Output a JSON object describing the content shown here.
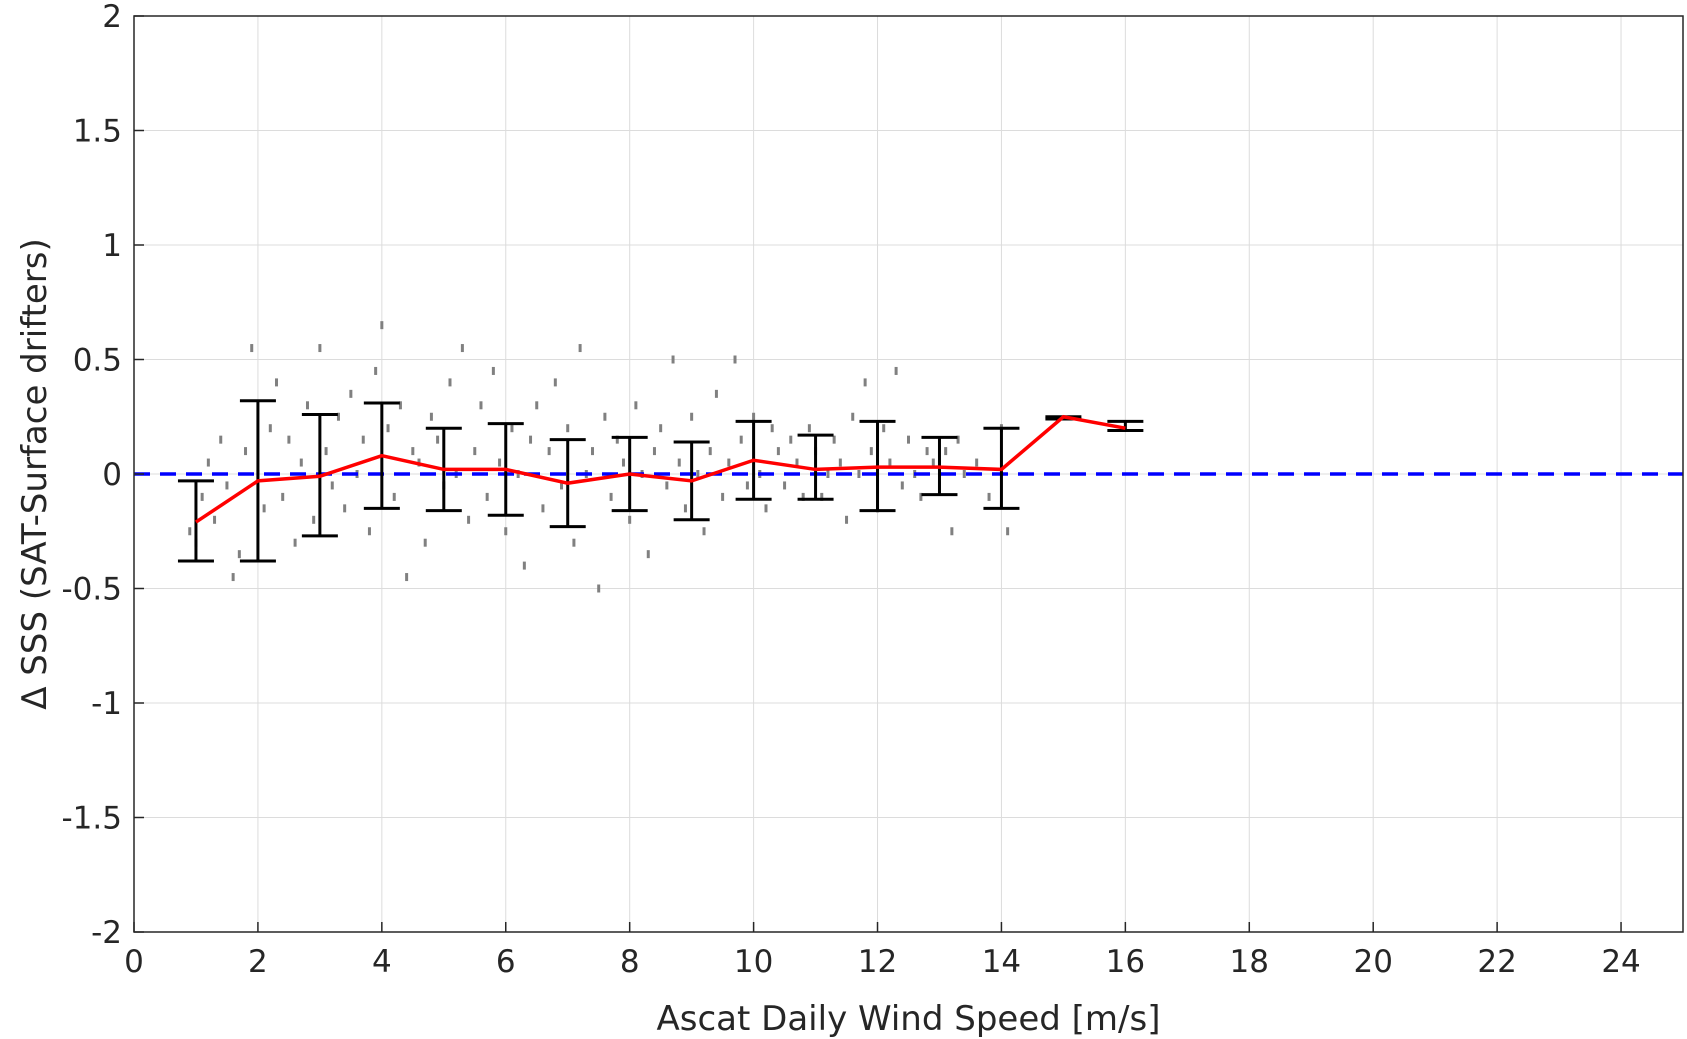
{
  "chart_data": {
    "type": "scatter",
    "xlabel": "Ascat Daily Wind Speed [m/s]",
    "ylabel": "Δ SSS (SAT-Surface drifters)",
    "xlim": [
      0,
      25
    ],
    "ylim": [
      -2,
      2
    ],
    "xticks": [
      0,
      2,
      4,
      6,
      8,
      10,
      12,
      14,
      16,
      18,
      20,
      22,
      24
    ],
    "yticks": [
      -2,
      -1.5,
      -1,
      -0.5,
      0,
      0.5,
      1,
      1.5,
      2
    ],
    "ytick_labels": [
      "-2",
      "-1.5",
      "-1",
      "-0.5",
      "0",
      "0.5",
      "1",
      "1.5",
      "2"
    ],
    "grid": true,
    "zero_line": {
      "y": 0,
      "style": "dashed",
      "color": "#0000ff"
    },
    "mean_line": {
      "color": "#ff0000",
      "x": [
        1,
        2,
        3,
        4,
        5,
        6,
        7,
        8,
        9,
        10,
        11,
        12,
        13,
        14,
        15,
        16
      ],
      "y": [
        -0.21,
        -0.03,
        -0.01,
        0.08,
        0.02,
        0.02,
        -0.04,
        0.0,
        -0.03,
        0.06,
        0.02,
        0.03,
        0.03,
        0.02,
        0.25,
        0.2
      ]
    },
    "error_bars": {
      "color": "#000000",
      "x": [
        1,
        2,
        3,
        4,
        5,
        6,
        7,
        8,
        9,
        10,
        11,
        12,
        13,
        14,
        15,
        16
      ],
      "low": [
        -0.38,
        -0.38,
        -0.27,
        -0.15,
        -0.16,
        -0.18,
        -0.23,
        -0.16,
        -0.2,
        -0.11,
        -0.11,
        -0.16,
        -0.09,
        -0.15,
        0.24,
        0.19
      ],
      "high": [
        -0.03,
        0.32,
        0.26,
        0.31,
        0.2,
        0.22,
        0.15,
        0.16,
        0.14,
        0.23,
        0.17,
        0.23,
        0.16,
        0.2,
        0.25,
        0.23
      ]
    },
    "scatter_points": {
      "color": "#808080",
      "points": [
        [
          0.9,
          -0.25
        ],
        [
          1.0,
          -0.3
        ],
        [
          1.1,
          -0.1
        ],
        [
          1.2,
          0.05
        ],
        [
          1.3,
          -0.2
        ],
        [
          1.4,
          0.15
        ],
        [
          1.5,
          -0.05
        ],
        [
          1.6,
          -0.45
        ],
        [
          1.7,
          -0.35
        ],
        [
          1.8,
          0.1
        ],
        [
          1.9,
          0.55
        ],
        [
          2.0,
          0.0
        ],
        [
          2.1,
          -0.15
        ],
        [
          2.2,
          0.2
        ],
        [
          2.3,
          0.4
        ],
        [
          2.4,
          -0.1
        ],
        [
          2.5,
          0.15
        ],
        [
          2.6,
          -0.3
        ],
        [
          2.7,
          0.05
        ],
        [
          2.8,
          0.3
        ],
        [
          2.9,
          -0.2
        ],
        [
          3.0,
          0.55
        ],
        [
          3.1,
          0.1
        ],
        [
          3.2,
          -0.05
        ],
        [
          3.3,
          0.25
        ],
        [
          3.4,
          -0.15
        ],
        [
          3.5,
          0.35
        ],
        [
          3.6,
          0.0
        ],
        [
          3.7,
          0.15
        ],
        [
          3.8,
          -0.25
        ],
        [
          3.9,
          0.45
        ],
        [
          4.0,
          0.65
        ],
        [
          4.1,
          0.2
        ],
        [
          4.2,
          -0.1
        ],
        [
          4.3,
          0.3
        ],
        [
          4.4,
          -0.45
        ],
        [
          4.5,
          0.1
        ],
        [
          4.6,
          0.05
        ],
        [
          4.7,
          -0.3
        ],
        [
          4.8,
          0.25
        ],
        [
          4.9,
          0.15
        ],
        [
          5.0,
          -0.05
        ],
        [
          5.1,
          0.4
        ],
        [
          5.2,
          0.0
        ],
        [
          5.3,
          0.55
        ],
        [
          5.4,
          -0.2
        ],
        [
          5.5,
          0.1
        ],
        [
          5.6,
          0.3
        ],
        [
          5.7,
          -0.1
        ],
        [
          5.8,
          0.45
        ],
        [
          5.9,
          0.05
        ],
        [
          6.0,
          -0.25
        ],
        [
          6.1,
          0.2
        ],
        [
          6.2,
          0.0
        ],
        [
          6.3,
          -0.4
        ],
        [
          6.4,
          0.15
        ],
        [
          6.5,
          0.3
        ],
        [
          6.6,
          -0.15
        ],
        [
          6.7,
          0.1
        ],
        [
          6.8,
          0.4
        ],
        [
          6.9,
          -0.05
        ],
        [
          7.0,
          0.2
        ],
        [
          7.1,
          -0.3
        ],
        [
          7.2,
          0.55
        ],
        [
          7.3,
          0.0
        ],
        [
          7.4,
          0.1
        ],
        [
          7.5,
          -0.5
        ],
        [
          7.6,
          0.25
        ],
        [
          7.7,
          -0.1
        ],
        [
          7.8,
          0.15
        ],
        [
          7.9,
          0.05
        ],
        [
          8.0,
          -0.2
        ],
        [
          8.1,
          0.3
        ],
        [
          8.2,
          0.0
        ],
        [
          8.3,
          -0.35
        ],
        [
          8.4,
          0.1
        ],
        [
          8.5,
          0.2
        ],
        [
          8.6,
          -0.05
        ],
        [
          8.7,
          0.5
        ],
        [
          8.8,
          0.05
        ],
        [
          8.9,
          -0.15
        ],
        [
          9.0,
          0.25
        ],
        [
          9.1,
          0.0
        ],
        [
          9.2,
          -0.25
        ],
        [
          9.3,
          0.1
        ],
        [
          9.4,
          0.35
        ],
        [
          9.5,
          -0.1
        ],
        [
          9.6,
          0.05
        ],
        [
          9.7,
          0.5
        ],
        [
          9.8,
          0.15
        ],
        [
          9.9,
          -0.05
        ],
        [
          10.0,
          0.25
        ],
        [
          10.1,
          0.0
        ],
        [
          10.2,
          -0.15
        ],
        [
          10.3,
          0.2
        ],
        [
          10.4,
          0.1
        ],
        [
          10.5,
          -0.05
        ],
        [
          10.6,
          0.15
        ],
        [
          10.7,
          0.05
        ],
        [
          10.8,
          -0.1
        ],
        [
          10.9,
          0.2
        ],
        [
          11.0,
          0.1
        ],
        [
          11.1,
          -0.1
        ],
        [
          11.2,
          0.0
        ],
        [
          11.3,
          0.15
        ],
        [
          11.4,
          0.05
        ],
        [
          11.5,
          -0.2
        ],
        [
          11.6,
          0.25
        ],
        [
          11.7,
          0.0
        ],
        [
          11.8,
          0.4
        ],
        [
          11.9,
          0.1
        ],
        [
          12.0,
          -0.15
        ],
        [
          12.1,
          0.2
        ],
        [
          12.2,
          0.05
        ],
        [
          12.3,
          0.45
        ],
        [
          12.4,
          -0.05
        ],
        [
          12.5,
          0.15
        ],
        [
          12.6,
          0.0
        ],
        [
          12.7,
          -0.1
        ],
        [
          12.8,
          0.1
        ],
        [
          12.9,
          0.05
        ],
        [
          13.0,
          -0.05
        ],
        [
          13.1,
          0.1
        ],
        [
          13.2,
          -0.25
        ],
        [
          13.3,
          0.15
        ],
        [
          13.4,
          0.0
        ],
        [
          13.6,
          0.05
        ],
        [
          13.8,
          -0.1
        ],
        [
          14.0,
          0.2
        ],
        [
          14.1,
          -0.25
        ]
      ]
    }
  }
}
